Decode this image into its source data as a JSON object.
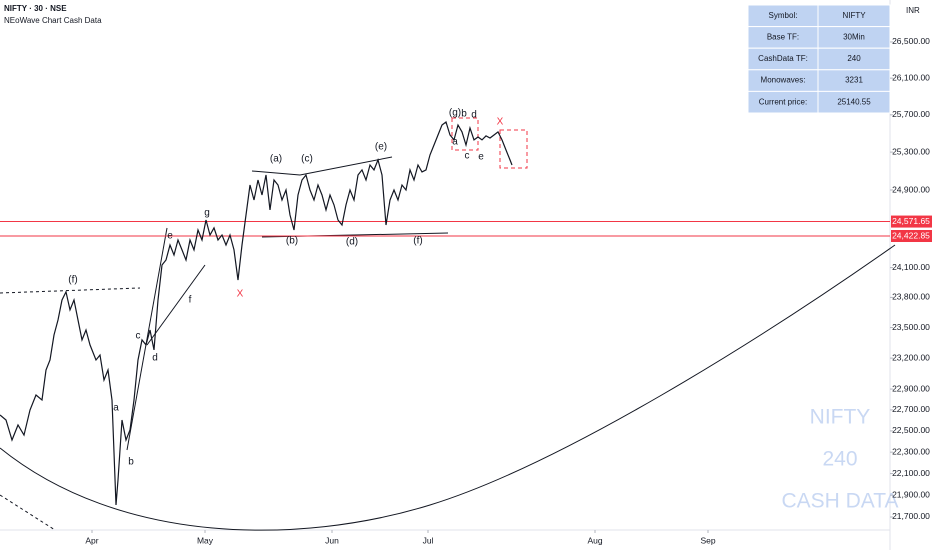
{
  "chart_data": {
    "type": "line",
    "header_title": "NIFTY · 30 · NSE",
    "header_subtitle": "NEoWave Chart Cash Data",
    "currency": "INR",
    "log_scale": true,
    "color": "#131722",
    "xlim": [
      0,
      890
    ],
    "xticks": [
      {
        "value": 92,
        "label": "Apr"
      },
      {
        "value": 205,
        "label": "May"
      },
      {
        "value": 332,
        "label": "Jun"
      },
      {
        "value": 428,
        "label": "Jul"
      },
      {
        "value": 595,
        "label": "Aug"
      },
      {
        "value": 708,
        "label": "Sep"
      }
    ],
    "ylim": [
      21491,
      26972
    ],
    "yticks": [
      {
        "value": 26500,
        "label": "26,500.00"
      },
      {
        "value": 26100,
        "label": "26,100.00"
      },
      {
        "value": 25700,
        "label": "25,700.00"
      },
      {
        "value": 25300,
        "label": "25,300.00"
      },
      {
        "value": 24900,
        "label": "24,900.00"
      },
      {
        "value": 24100,
        "label": "24,100.00"
      },
      {
        "value": 23800,
        "label": "23,800.00"
      },
      {
        "value": 23500,
        "label": "23,500.00"
      },
      {
        "value": 23200,
        "label": "23,200.00"
      },
      {
        "value": 22900,
        "label": "22,900.00"
      },
      {
        "value": 22700,
        "label": "22,700.00"
      },
      {
        "value": 22500,
        "label": "22,500.00"
      },
      {
        "value": 22300,
        "label": "22,300.00"
      },
      {
        "value": 22100,
        "label": "22,100.00"
      },
      {
        "value": 21900,
        "label": "21,900.00"
      },
      {
        "value": 21700,
        "label": "21,700.00"
      }
    ],
    "x": [
      0,
      6,
      12,
      18,
      24,
      30,
      36,
      42,
      46,
      50,
      54,
      58,
      62,
      66,
      70,
      74,
      78,
      82,
      86,
      90,
      96,
      100,
      104,
      108,
      112,
      116,
      118,
      122,
      126,
      130,
      134,
      138,
      142,
      146,
      150,
      154,
      158,
      162,
      166,
      170,
      174,
      178,
      182,
      186,
      190,
      194,
      198,
      202,
      206,
      210,
      214,
      218,
      222,
      226,
      230,
      234,
      238,
      242,
      246,
      250,
      254,
      258,
      262,
      266,
      270,
      274,
      278,
      282,
      286,
      290,
      294,
      298,
      302,
      306,
      310,
      314,
      318,
      322,
      326,
      330,
      334,
      338,
      342,
      346,
      350,
      354,
      358,
      362,
      366,
      370,
      374,
      378,
      382,
      386,
      390,
      394,
      398,
      402,
      406,
      410,
      414,
      418,
      422,
      426,
      430,
      434,
      438,
      442,
      446,
      450,
      454,
      458,
      462,
      466,
      470,
      474,
      478,
      482,
      486,
      490,
      494,
      498,
      502,
      506,
      510,
      512
    ],
    "values": [
      22651,
      22604,
      22414,
      22556,
      22461,
      22699,
      22843,
      22795,
      23084,
      23182,
      23427,
      23575,
      23774,
      23855,
      23675,
      23774,
      23575,
      23378,
      23476,
      23329,
      23182,
      23230,
      22987,
      23084,
      22795,
      21810,
      22040,
      22604,
      22414,
      22509,
      22795,
      23182,
      23378,
      23329,
      23476,
      23280,
      23774,
      24127,
      24178,
      24331,
      24228,
      24382,
      24280,
      24178,
      24382,
      24280,
      24485,
      24382,
      24588,
      24433,
      24506,
      24382,
      24433,
      24331,
      24433,
      24280,
      23975,
      24331,
      24640,
      24953,
      24796,
      25005,
      24848,
      25058,
      24692,
      25005,
      24953,
      24796,
      24900,
      24640,
      24485,
      24848,
      25005,
      25058,
      24900,
      24796,
      24953,
      24848,
      24692,
      24848,
      24744,
      24588,
      24536,
      24744,
      24900,
      24796,
      25058,
      25111,
      25005,
      25163,
      25111,
      25217,
      25058,
      24536,
      24796,
      24900,
      24796,
      24953,
      24900,
      25111,
      25005,
      25163,
      25090,
      25111,
      25270,
      25376,
      25483,
      25590,
      25623,
      25483,
      25430,
      25590,
      25516,
      25376,
      25558,
      25430,
      25462,
      25430,
      25473,
      25451,
      25483,
      25516,
      25430,
      25323,
      25217,
      25163
    ],
    "price_lines": [
      {
        "value": 24571.65,
        "label": "24,571.65"
      },
      {
        "value": 24422.85,
        "label": "24,422.85"
      }
    ],
    "price_line_color": "#f23645",
    "wave_labels": [
      "(f)",
      "a",
      "b",
      "c",
      "d",
      "e",
      "f",
      "g",
      "X",
      "(a)",
      "(b)",
      "(c)",
      "(d)",
      "(e)",
      "(f)",
      "(g)",
      "b",
      "d",
      "a",
      "c",
      "e",
      "X"
    ],
    "info_table": [
      [
        "Symbol:",
        "NIFTY"
      ],
      [
        "Base TF:",
        "30Min"
      ],
      [
        "CashData TF:",
        "240"
      ],
      [
        "Monowaves:",
        "3231"
      ],
      [
        "Current price:",
        "25140.55"
      ]
    ],
    "watermark": [
      "NIFTY",
      "240",
      "CASH DATA"
    ]
  }
}
